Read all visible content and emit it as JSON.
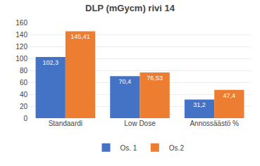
{
  "chart_data": {
    "type": "bar",
    "title": "DLP (mGycm) rivi 14",
    "categories": [
      "Standaardi",
      "Low Dose",
      "Annossäästö %"
    ],
    "series": [
      {
        "name": "Os. 1",
        "color": "#4472C4",
        "values": [
          102.3,
          70.4,
          31.2
        ],
        "value_labels": [
          "102,3",
          "70,4",
          "31,2"
        ]
      },
      {
        "name": "Os.2",
        "color": "#ED7D31",
        "values": [
          145.41,
          76.53,
          47.4
        ],
        "value_labels": [
          "145,41",
          "76,53",
          "47,4"
        ]
      }
    ],
    "ylim": [
      0,
      160
    ],
    "yticks": [
      0,
      20,
      40,
      60,
      80,
      100,
      120,
      140,
      160
    ],
    "grid": true,
    "legend": "bottom",
    "data_labels": true
  }
}
